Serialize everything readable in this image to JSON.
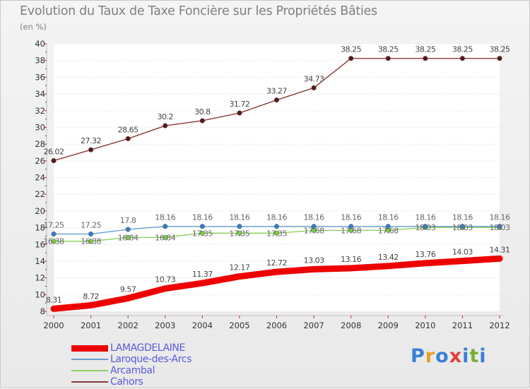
{
  "title": "Evolution du Taux de Taxe Foncière sur les Propriétés Bâties",
  "unit_label": "(en %)",
  "logo_text": "Proxiti",
  "logo_colors": [
    "#3a7fd5",
    "#e8a020",
    "#3a7fd5",
    "#e24040",
    "#3a7fd5",
    "#7ab030",
    "#3a7fd5"
  ],
  "chart_data": {
    "type": "line",
    "title": "Evolution du Taux de Taxe Foncière sur les Propriétés Bâties",
    "ylabel": "(en %)",
    "xlabel": "",
    "ylim": [
      8,
      40
    ],
    "yticks": [
      "8",
      "10",
      "12",
      "14",
      "16",
      "18",
      "20",
      "22",
      "24",
      "26",
      "28",
      "30",
      "32",
      "34",
      "36",
      "38",
      "40"
    ],
    "categories": [
      "2000",
      "2001",
      "2002",
      "2003",
      "2004",
      "2005",
      "2006",
      "2007",
      "2008",
      "2009",
      "2010",
      "2011",
      "2012"
    ],
    "series": [
      {
        "name": "LAMAGDELAINE",
        "color": "#ee0000",
        "marker": "#ee0000",
        "labelColor": "#444444",
        "values": [
          8.31,
          8.72,
          9.57,
          10.73,
          11.37,
          12.17,
          12.72,
          13.03,
          13.16,
          13.42,
          13.76,
          14.03,
          14.31
        ],
        "labels": [
          "8.31",
          "8.72",
          "9.57",
          "10.73",
          "11.37",
          "12.17",
          "12.72",
          "13.03",
          "13.16",
          "13.42",
          "13.76",
          "14.03",
          "14.31"
        ]
      },
      {
        "name": "Laroque-des-Arcs",
        "color": "#6a9fd0",
        "marker": "#3a7fc0",
        "labelColor": "#666666",
        "values": [
          17.25,
          17.25,
          17.8,
          18.16,
          18.16,
          18.16,
          18.16,
          18.16,
          18.16,
          18.16,
          18.16,
          18.16,
          18.16
        ],
        "labels": [
          "17.25",
          "17.25",
          "17.8",
          "18.16",
          "18.16",
          "18.16",
          "18.16",
          "18.16",
          "18.16",
          "18.16",
          "18.16",
          "18.16",
          "18.16"
        ]
      },
      {
        "name": "Arcambal",
        "color": "#90d060",
        "marker": "#7acc40",
        "labelColor": "#666666",
        "values": [
          16.38,
          16.38,
          16.84,
          16.84,
          17.35,
          17.35,
          17.35,
          17.68,
          17.68,
          17.68,
          18.03,
          18.03,
          18.03
        ],
        "labels": [
          "16.38",
          "16.38",
          "16.84",
          "16.84",
          "17.35",
          "17.35",
          "17.35",
          "17.68",
          "17.68",
          "17.68",
          "18.03",
          "18.03",
          "18.03"
        ]
      },
      {
        "name": "Cahors",
        "color": "#8a3a3a",
        "marker": "#5a1818",
        "labelColor": "#444444",
        "values": [
          26.02,
          27.32,
          28.65,
          30.2,
          30.8,
          31.72,
          33.27,
          34.73,
          38.25,
          38.25,
          38.25,
          38.25,
          38.25
        ],
        "labels": [
          "26.02",
          "27.32",
          "28.65",
          "30.2",
          "30.8",
          "31.72",
          "33.27",
          "34.73",
          "38.25",
          "38.25",
          "38.25",
          "38.25",
          "38.25"
        ]
      }
    ]
  }
}
